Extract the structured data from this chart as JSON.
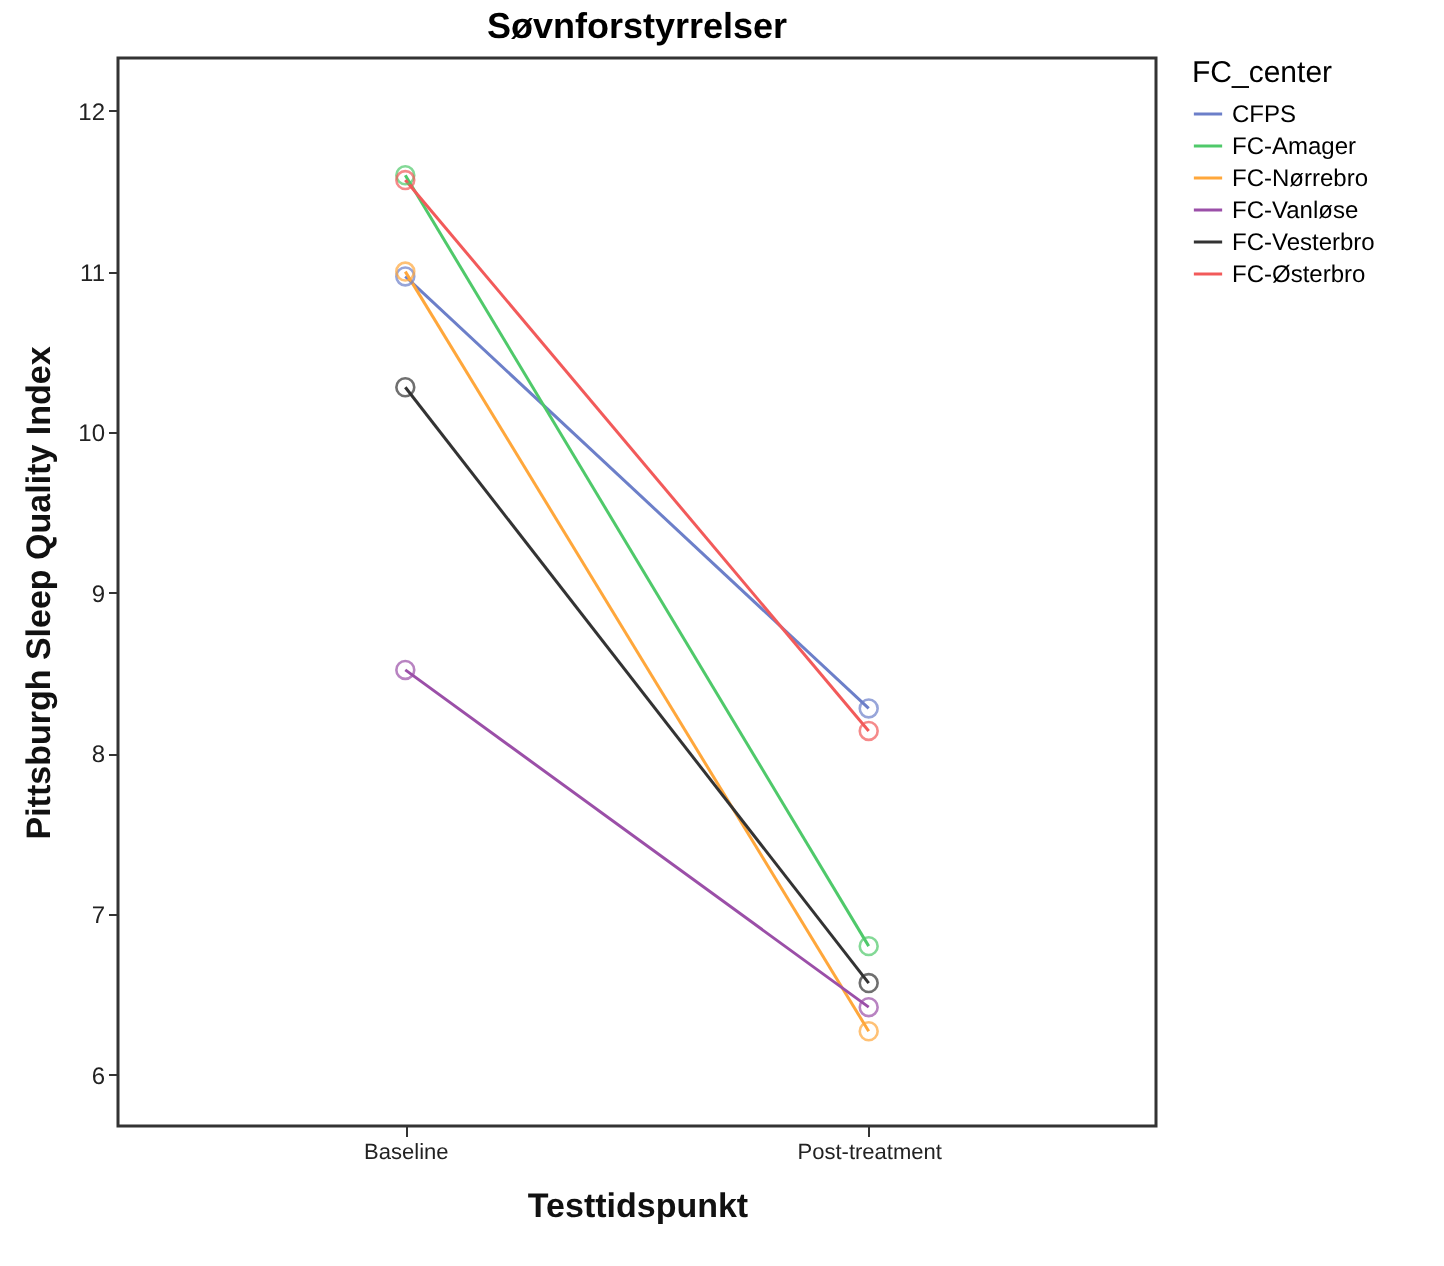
{
  "chart_data": {
    "type": "line",
    "title": "Søvnforstyrrelser",
    "xlabel": "Testtidspunkt",
    "ylabel": "Pittsburgh Sleep Quality Index",
    "legend_title": "FC_center",
    "categories": [
      "Baseline",
      "Post-treatment"
    ],
    "series": [
      {
        "name": "CFPS",
        "color": "#6c7fc9",
        "values": [
          10.97,
          8.28
        ]
      },
      {
        "name": "FC-Amager",
        "color": "#4fc96a",
        "values": [
          11.6,
          6.8
        ]
      },
      {
        "name": "FC-Nørrebro",
        "color": "#ffa73b",
        "values": [
          11.0,
          6.27
        ]
      },
      {
        "name": "FC-Vanløse",
        "color": "#9b4fa8",
        "values": [
          8.52,
          6.42
        ]
      },
      {
        "name": "FC-Vesterbro",
        "color": "#333333",
        "values": [
          10.28,
          6.57
        ]
      },
      {
        "name": "FC-Østerbro",
        "color": "#f25a5a",
        "values": [
          11.57,
          8.14
        ]
      }
    ],
    "ylim": [
      5.68,
      12.33
    ],
    "yticks": [
      6,
      7,
      8,
      9,
      10,
      11,
      12
    ],
    "legend": "top right",
    "marker": "circle",
    "line_style": "solid"
  }
}
